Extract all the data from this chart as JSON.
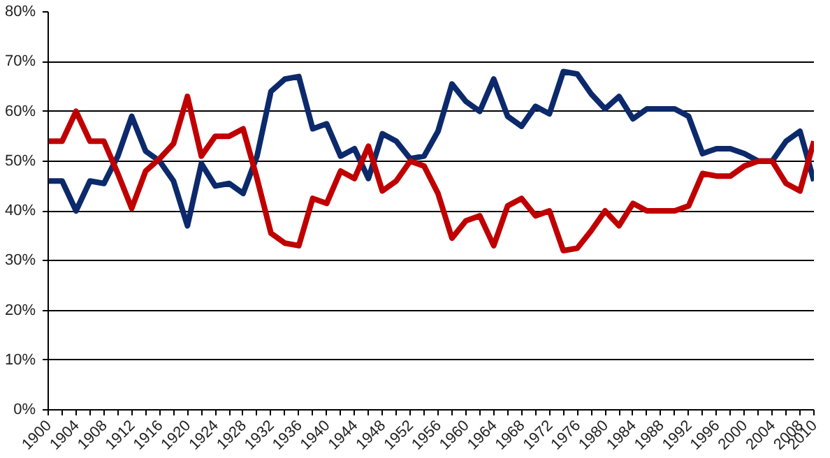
{
  "chart_data": {
    "type": "line",
    "x": [
      1900,
      1902,
      1904,
      1906,
      1908,
      1910,
      1912,
      1914,
      1916,
      1918,
      1920,
      1922,
      1924,
      1926,
      1928,
      1930,
      1932,
      1934,
      1936,
      1938,
      1940,
      1942,
      1944,
      1946,
      1948,
      1950,
      1952,
      1954,
      1956,
      1958,
      1960,
      1962,
      1964,
      1966,
      1968,
      1970,
      1972,
      1974,
      1976,
      1978,
      1980,
      1982,
      1984,
      1986,
      1988,
      1990,
      1992,
      1994,
      1996,
      1998,
      2000,
      2002,
      2004,
      2006,
      2008,
      2010
    ],
    "series": [
      {
        "color": "#0c2a6b",
        "values": [
          46,
          46,
          40,
          46,
          45.5,
          51,
          59,
          52,
          50,
          46,
          37,
          49.5,
          45,
          45.5,
          43.5,
          51,
          64,
          66.5,
          67,
          56.5,
          57.5,
          51,
          52.5,
          46.5,
          55.5,
          54,
          50.5,
          51,
          56,
          65.5,
          62,
          60,
          66.5,
          59,
          57,
          61,
          59.5,
          68,
          67.5,
          63.5,
          60.5,
          63,
          58.5,
          60.5,
          60.5,
          60.5,
          59,
          51.5,
          52.5,
          52.5,
          51.5,
          50,
          50,
          54,
          56,
          46
        ]
      },
      {
        "color": "#c00000",
        "values": [
          54,
          54,
          60,
          54,
          54,
          47.5,
          40.5,
          48,
          50.5,
          53.5,
          63,
          51,
          55,
          55,
          56.5,
          46.5,
          35.5,
          33.5,
          33,
          42.5,
          41.5,
          48,
          46.5,
          53,
          44,
          46,
          50,
          49,
          43.5,
          34.5,
          38,
          39,
          33,
          41,
          42.5,
          39,
          40,
          32,
          32.5,
          36,
          40,
          37,
          41.5,
          40,
          40,
          40,
          41,
          47.5,
          47,
          47,
          49,
          50,
          50,
          45.5,
          44,
          54
        ]
      }
    ],
    "ylim": [
      0,
      80
    ],
    "yticks": [
      {
        "value": 0,
        "label": "0%"
      },
      {
        "value": 10,
        "label": "10%"
      },
      {
        "value": 20,
        "label": "20%"
      },
      {
        "value": 30,
        "label": "30%"
      },
      {
        "value": 40,
        "label": "40%"
      },
      {
        "value": 50,
        "label": "50%"
      },
      {
        "value": 60,
        "label": "60%"
      },
      {
        "value": 70,
        "label": "70%"
      },
      {
        "value": 80,
        "label": "80%"
      }
    ],
    "xlim": [
      1900,
      2010
    ],
    "xticks": [
      1900,
      {
        "value": 1902,
        "label": null
      },
      1904,
      {
        "value": 1906,
        "label": null
      },
      1908,
      {
        "value": 1910,
        "label": null
      },
      1912,
      {
        "value": 1914,
        "label": null
      },
      1916,
      {
        "value": 1918,
        "label": null
      },
      1920,
      {
        "value": 1922,
        "label": null
      },
      1924,
      {
        "value": 1926,
        "label": null
      },
      1928,
      {
        "value": 1930,
        "label": null
      },
      1932,
      {
        "value": 1934,
        "label": null
      },
      1936,
      {
        "value": 1938,
        "label": null
      },
      1940,
      {
        "value": 1942,
        "label": null
      },
      1944,
      {
        "value": 1946,
        "label": null
      },
      1948,
      {
        "value": 1950,
        "label": null
      },
      1952,
      {
        "value": 1954,
        "label": null
      },
      1956,
      {
        "value": 1958,
        "label": null
      },
      1960,
      {
        "value": 1962,
        "label": null
      },
      1964,
      {
        "value": 1966,
        "label": null
      },
      1968,
      {
        "value": 1970,
        "label": null
      },
      1972,
      {
        "value": 1974,
        "label": null
      },
      1976,
      {
        "value": 1978,
        "label": null
      },
      1980,
      {
        "value": 1982,
        "label": null
      },
      1984,
      {
        "value": 1986,
        "label": null
      },
      1988,
      {
        "value": 1990,
        "label": null
      },
      1992,
      {
        "value": 1994,
        "label": null
      },
      1996,
      {
        "value": 1998,
        "label": null
      },
      2000,
      {
        "value": 2002,
        "label": null
      },
      2004,
      {
        "value": 2006,
        "label": null
      },
      2008,
      2010
    ],
    "grid": "y",
    "marker": "none",
    "line_style": "solid"
  }
}
